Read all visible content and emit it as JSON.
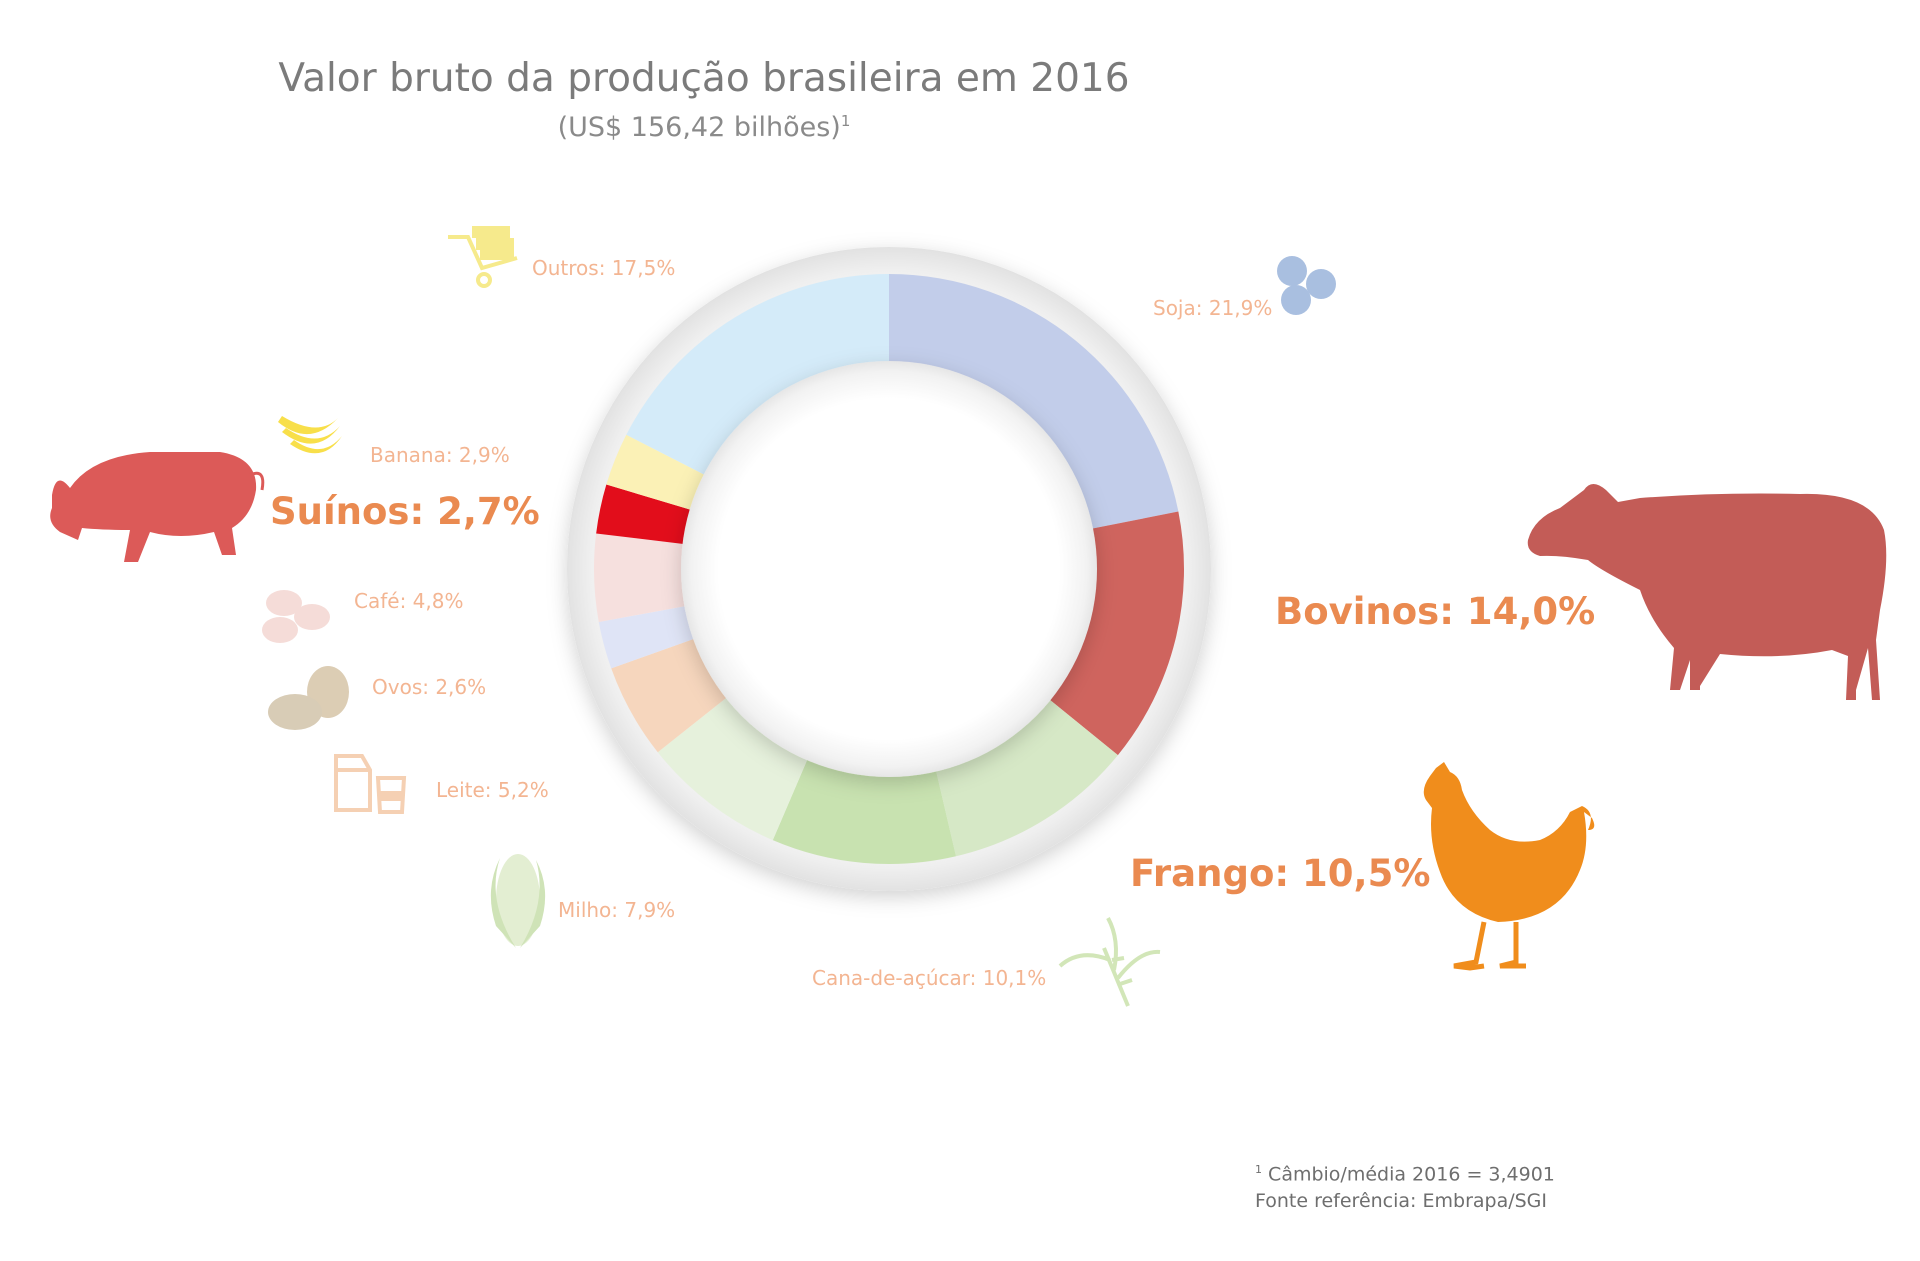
{
  "title": "Valor bruto da produção brasileira em 2016",
  "subtitle": "(US$ 156,42 bilhões)",
  "subtitle_mark": "1",
  "footnote": {
    "mark": "1",
    "line1": "Câmbio/média 2016 = 3,4901",
    "line2": "Fonte referência: Embrapa/SGI"
  },
  "chart_data": {
    "type": "pie",
    "variant": "donut",
    "slices": [
      {
        "label": "Soja: 21,9%",
        "value": 21.9,
        "color": "#c2cdea"
      },
      {
        "label": "Bovinos: 14,0%",
        "value": 14.0,
        "color": "#cf645e"
      },
      {
        "label": "Frango: 10,5%",
        "value": 10.5,
        "color": "#d6e8c6"
      },
      {
        "label": "Cana-de-açúcar: 10,1%",
        "value": 10.1,
        "color": "#c8e2b0"
      },
      {
        "label": "Milho: 7,9%",
        "value": 7.9,
        "color": "#e6f1dc"
      },
      {
        "label": "Leite: 5,2%",
        "value": 5.2,
        "color": "#f6d6bd"
      },
      {
        "label": "Ovos: 2,6%",
        "value": 2.6,
        "color": "#dfe4f6"
      },
      {
        "label": "Café: 4,8%",
        "value": 4.8,
        "color": "#f6e0de"
      },
      {
        "label": "Suínos: 2,7%",
        "value": 2.7,
        "color": "#e20d1b"
      },
      {
        "label": "Banana: 2,9%",
        "value": 2.9,
        "color": "#fbf1b6"
      },
      {
        "label": "Outros: 17,5%",
        "value": 17.5,
        "color": "#d4ebf9"
      }
    ]
  },
  "icons": {
    "soja": "soybean-icon",
    "bovinos": "cow-icon",
    "frango": "chicken-icon",
    "cana": "sugarcane-icon",
    "milho": "corn-icon",
    "leite": "milk-icon",
    "ovos": "eggs-icon",
    "cafe": "coffee-bean-icon",
    "suinos": "pig-icon",
    "banana": "banana-icon",
    "outros": "cart-icon"
  }
}
